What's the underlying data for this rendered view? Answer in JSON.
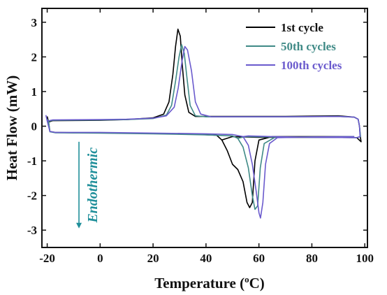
{
  "chart_data": {
    "type": "line",
    "title": "",
    "xlabel_main": "Temperature (",
    "xlabel_sup": "o",
    "xlabel_end": "C)",
    "ylabel": "Heat Flow (mW)",
    "xlim": [
      -22,
      101
    ],
    "ylim": [
      -3.5,
      3.4
    ],
    "xticks": [
      -20,
      0,
      20,
      40,
      60,
      80,
      100
    ],
    "yticks": [
      -3,
      -2,
      -1,
      0,
      1,
      2,
      3
    ],
    "grid": false,
    "legend_position": "top-right",
    "annotation": {
      "text": "Endothermic",
      "color": "#1f8f9a",
      "arrow_x": -8,
      "arrow_from_y": -0.45,
      "arrow_to_y": -2.95
    },
    "series": [
      {
        "name": "1st cycle",
        "color": "#000000",
        "cooling": [
          [
            -20,
            0.28
          ],
          [
            -19.5,
            0.12
          ],
          [
            -18,
            0.16
          ],
          [
            0,
            0.17
          ],
          [
            10,
            0.19
          ],
          [
            20,
            0.24
          ],
          [
            24,
            0.35
          ],
          [
            26,
            0.7
          ],
          [
            27.5,
            1.5
          ],
          [
            28.5,
            2.3
          ],
          [
            29.4,
            2.8
          ],
          [
            30.3,
            2.6
          ],
          [
            31,
            1.8
          ],
          [
            32,
            0.9
          ],
          [
            33.5,
            0.4
          ],
          [
            36,
            0.28
          ],
          [
            50,
            0.28
          ],
          [
            70,
            0.28
          ],
          [
            90,
            0.3
          ],
          [
            96,
            0.26
          ],
          [
            97.5,
            0.2
          ],
          [
            98,
            0.0
          ]
        ],
        "heating": [
          [
            98,
            0.0
          ],
          [
            98.3,
            -0.3
          ],
          [
            98.6,
            -0.45
          ],
          [
            97,
            -0.33
          ],
          [
            80,
            -0.32
          ],
          [
            60,
            -0.32
          ],
          [
            50,
            -0.3
          ],
          [
            46,
            -0.4
          ],
          [
            48,
            -0.7
          ],
          [
            50,
            -1.1
          ],
          [
            52,
            -1.25
          ],
          [
            54,
            -1.6
          ],
          [
            55.5,
            -2.2
          ],
          [
            56.5,
            -2.35
          ],
          [
            57.5,
            -2.2
          ],
          [
            58.5,
            -1.0
          ],
          [
            60,
            -0.4
          ],
          [
            65,
            -0.3
          ],
          [
            80,
            -0.3
          ],
          [
            96,
            -0.3
          ]
        ],
        "heating_start": [
          [
            -19.5,
            0.12
          ],
          [
            -19,
            -0.15
          ],
          [
            -17,
            -0.18
          ],
          [
            -10,
            -0.19
          ],
          [
            0,
            -0.19
          ],
          [
            20,
            -0.21
          ],
          [
            35,
            -0.23
          ],
          [
            44,
            -0.26
          ],
          [
            46,
            -0.4
          ]
        ]
      },
      {
        "name": "50th cycles",
        "color": "#3f8a86",
        "cooling": [
          [
            -20,
            0.2
          ],
          [
            -19.5,
            0.14
          ],
          [
            -18,
            0.17
          ],
          [
            0,
            0.18
          ],
          [
            10,
            0.19
          ],
          [
            20,
            0.22
          ],
          [
            25,
            0.32
          ],
          [
            27,
            0.6
          ],
          [
            28.5,
            1.3
          ],
          [
            29.8,
            2.0
          ],
          [
            30.8,
            2.35
          ],
          [
            31.8,
            2.1
          ],
          [
            32.8,
            1.4
          ],
          [
            34,
            0.6
          ],
          [
            36,
            0.3
          ],
          [
            40,
            0.27
          ],
          [
            70,
            0.27
          ],
          [
            90,
            0.28
          ],
          [
            96,
            0.26
          ],
          [
            97.5,
            0.2
          ],
          [
            98,
            0.0
          ]
        ],
        "heating": [
          [
            98,
            0.0
          ],
          [
            98.4,
            -0.3
          ],
          [
            97,
            -0.33
          ],
          [
            80,
            -0.32
          ],
          [
            65,
            -0.31
          ],
          [
            55,
            -0.3
          ],
          [
            52,
            -0.35
          ],
          [
            54,
            -0.6
          ],
          [
            56,
            -1.2
          ],
          [
            57.5,
            -2.0
          ],
          [
            58.5,
            -2.4
          ],
          [
            59.5,
            -2.3
          ],
          [
            60.5,
            -1.2
          ],
          [
            62,
            -0.5
          ],
          [
            66,
            -0.32
          ],
          [
            80,
            -0.31
          ],
          [
            96,
            -0.3
          ]
        ],
        "heating_start": [
          [
            -19.5,
            0.14
          ],
          [
            -19,
            -0.16
          ],
          [
            -17,
            -0.19
          ],
          [
            0,
            -0.2
          ],
          [
            20,
            -0.22
          ],
          [
            40,
            -0.25
          ],
          [
            50,
            -0.28
          ],
          [
            52,
            -0.35
          ]
        ]
      },
      {
        "name": "100th cycles",
        "color": "#6a5acd",
        "cooling": [
          [
            -20.5,
            0.32
          ],
          [
            -20,
            0.15
          ],
          [
            -18,
            0.18
          ],
          [
            0,
            0.19
          ],
          [
            10,
            0.2
          ],
          [
            20,
            0.23
          ],
          [
            25,
            0.3
          ],
          [
            28,
            0.55
          ],
          [
            29.5,
            1.1
          ],
          [
            31,
            1.9
          ],
          [
            32,
            2.3
          ],
          [
            33,
            2.2
          ],
          [
            34.5,
            1.6
          ],
          [
            36,
            0.7
          ],
          [
            38,
            0.35
          ],
          [
            42,
            0.27
          ],
          [
            70,
            0.27
          ],
          [
            90,
            0.28
          ],
          [
            96,
            0.26
          ],
          [
            97.5,
            0.2
          ],
          [
            98,
            0.0
          ]
        ],
        "heating": [
          [
            98,
            0.0
          ],
          [
            98.2,
            -0.3
          ],
          [
            97,
            -0.33
          ],
          [
            80,
            -0.32
          ],
          [
            65,
            -0.3
          ],
          [
            56,
            -0.28
          ],
          [
            54,
            -0.3
          ],
          [
            56,
            -0.55
          ],
          [
            57.5,
            -1.1
          ],
          [
            59,
            -1.9
          ],
          [
            60,
            -2.5
          ],
          [
            60.6,
            -2.65
          ],
          [
            61.5,
            -2.2
          ],
          [
            62.5,
            -1.1
          ],
          [
            64,
            -0.5
          ],
          [
            67,
            -0.33
          ],
          [
            80,
            -0.31
          ],
          [
            96,
            -0.3
          ]
        ],
        "heating_start": [
          [
            -20,
            0.15
          ],
          [
            -19,
            -0.15
          ],
          [
            -17,
            -0.18
          ],
          [
            0,
            -0.18
          ],
          [
            20,
            -0.2
          ],
          [
            40,
            -0.22
          ],
          [
            50,
            -0.24
          ],
          [
            54,
            -0.3
          ]
        ]
      }
    ]
  }
}
